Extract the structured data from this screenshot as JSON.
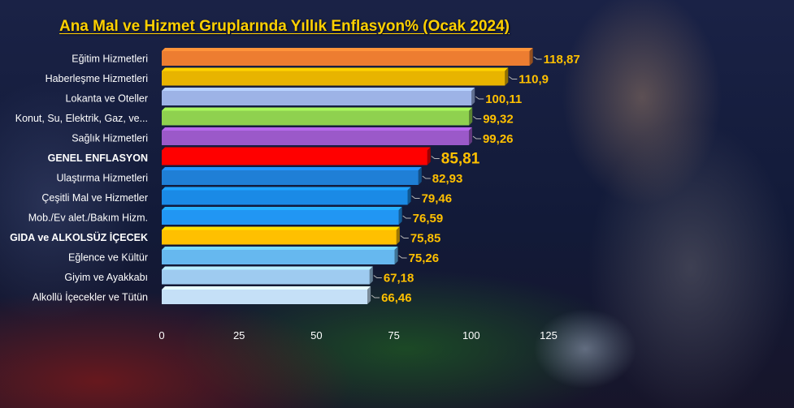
{
  "chart_data": {
    "type": "bar",
    "orientation": "horizontal",
    "title": "Ana Mal ve Hizmet Gruplarında Yıllık Enflasyon% (Ocak 2024)",
    "xlabel": "",
    "ylabel": "",
    "xlim": [
      0,
      125
    ],
    "ticks": [
      0,
      25,
      50,
      75,
      100,
      125
    ],
    "grid": false,
    "legend": "none",
    "categories": [
      "Eğitim Hizmetleri",
      "Haberleşme Hizmetleri",
      "Lokanta ve Oteller",
      "Konut, Su, Elektrik, Gaz, ve...",
      "Sağlık Hizmetleri",
      "GENEL ENFLASYON",
      "Ulaştırma Hizmetleri",
      "Çeşitli Mal ve Hizmetler",
      "Mob./Ev alet./Bakım Hizm.",
      "GIDA ve ALKOLSÜZ İÇECEK",
      "Eğlence ve Kültür",
      "Giyim ve Ayakkabı",
      "Alkollü İçecekler ve Tütün"
    ],
    "values": [
      118.87,
      110.9,
      100.11,
      99.32,
      99.26,
      85.81,
      82.93,
      79.46,
      76.59,
      75.85,
      75.26,
      67.18,
      66.46
    ],
    "value_labels": [
      "118,87",
      "110,9",
      "100,11",
      "99,32",
      "99,26",
      "85,81",
      "82,93",
      "79,46",
      "76,59",
      "75,85",
      "75,26",
      "67,18",
      "66,46"
    ],
    "colors": [
      "#ed7d31",
      "#e8b400",
      "#9db3e6",
      "#8fd14f",
      "#9b59c9",
      "#ff0000",
      "#1f7fd6",
      "#1a8ae6",
      "#2196f3",
      "#ffc000",
      "#66b8ef",
      "#9ecbf0",
      "#c5e0f7"
    ],
    "highlight": [
      "GENEL ENFLASYON",
      "GIDA ve ALKOLSÜZ İÇECEK"
    ]
  }
}
